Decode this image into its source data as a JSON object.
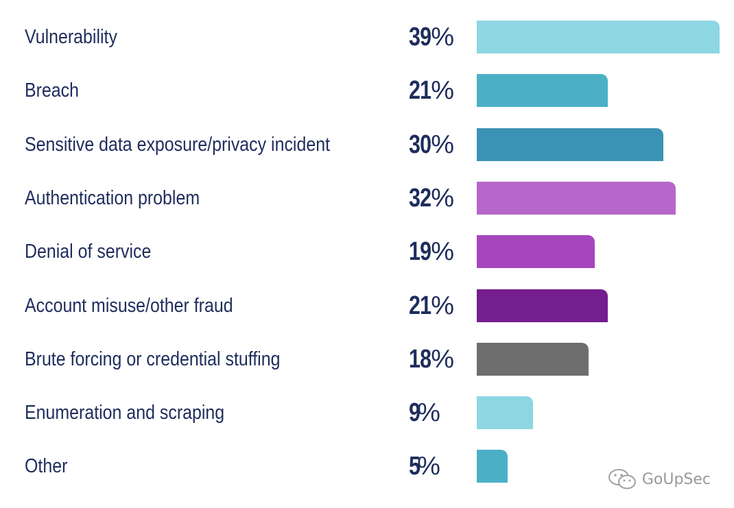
{
  "chart_data": {
    "type": "bar",
    "orientation": "horizontal",
    "categories": [
      "Vulnerability",
      "Breach",
      "Sensitive data exposure/privacy incident",
      "Authentication problem",
      "Denial of service",
      "Account misuse/other fraud",
      "Brute forcing or credential stuffing",
      "Enumeration and scraping",
      "Other"
    ],
    "values": [
      39,
      21,
      30,
      32,
      19,
      21,
      18,
      9,
      5
    ],
    "value_labels": [
      "39",
      "21",
      "30",
      "32",
      "19",
      "21",
      "18",
      "9",
      "5"
    ],
    "unit": "%",
    "colors": [
      "#8dd6e2",
      "#4bb0c6",
      "#3a93b4",
      "#b767c9",
      "#a646bd",
      "#751e8f",
      "#6e6e6e",
      "#8dd6e2",
      "#4bb0c6"
    ],
    "xlim": [
      0,
      39
    ],
    "title": "",
    "xlabel": "",
    "ylabel": "",
    "grid": false,
    "legend": "none"
  },
  "colors": {
    "text": "#1e2d5c",
    "background": "#ffffff"
  },
  "watermark": {
    "text": "GoUpSec",
    "icon": "wechat-icon"
  }
}
